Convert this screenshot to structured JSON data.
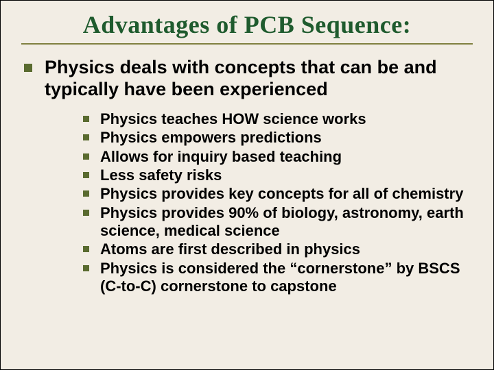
{
  "slide": {
    "title": "Advantages of PCB Sequence:",
    "title_color": "#1f5b2e",
    "title_font_family": "Georgia, serif",
    "title_fontsize": 36,
    "background_color": "#f2ede4",
    "rule_color": "#808040",
    "bullet_color": "#5a6b2f",
    "body_font_family": "Arial, sans-serif",
    "level1": {
      "text": "Physics deals with concepts that can be and typically have been experienced",
      "fontsize": 27,
      "font_weight": "bold"
    },
    "level2": {
      "fontsize": 22,
      "font_weight": "bold",
      "items": [
        "Physics teaches HOW science works",
        "Physics empowers predictions",
        "Allows for inquiry based teaching",
        "Less safety risks",
        "Physics provides key concepts for all of chemistry",
        "Physics provides 90% of biology, astronomy, earth science, medical science",
        "Atoms are first described in physics",
        "Physics is considered the “cornerstone” by BSCS (C-to-C) cornerstone to capstone"
      ]
    }
  }
}
